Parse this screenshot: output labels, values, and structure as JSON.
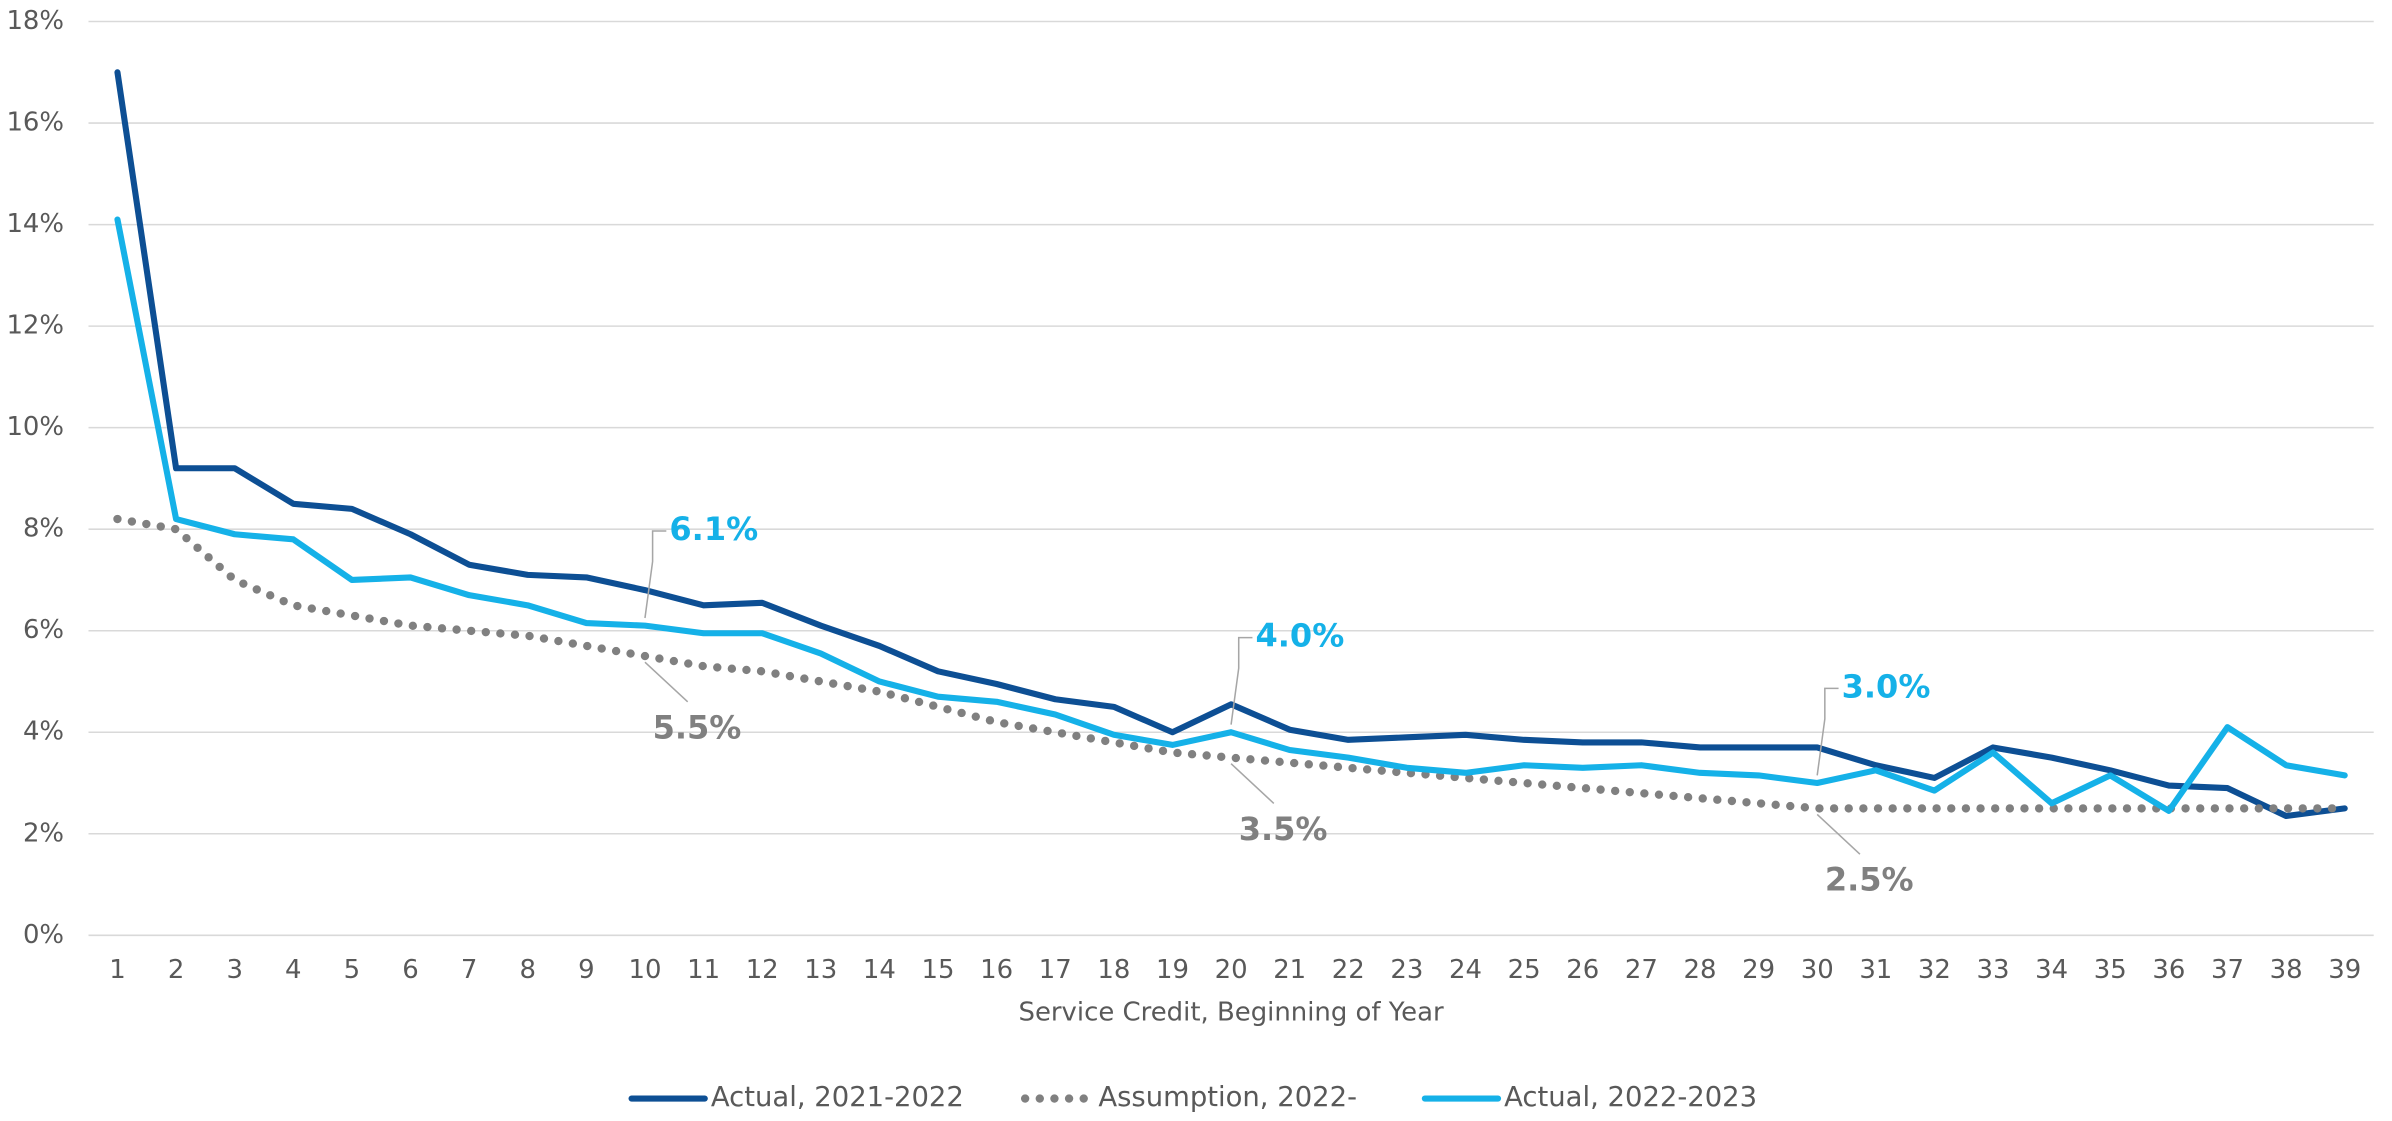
{
  "chart_data": {
    "type": "line",
    "x_label": "Service Credit, Beginning of Year",
    "categories": [
      1,
      2,
      3,
      4,
      5,
      6,
      7,
      8,
      9,
      10,
      11,
      12,
      13,
      14,
      15,
      16,
      17,
      18,
      19,
      20,
      21,
      22,
      23,
      24,
      25,
      26,
      27,
      28,
      29,
      30,
      31,
      32,
      33,
      34,
      35,
      36,
      37,
      38,
      39
    ],
    "ylim": [
      0,
      18
    ],
    "yticks": [
      {
        "value": 0,
        "label": "0%"
      },
      {
        "value": 2,
        "label": "2%"
      },
      {
        "value": 4,
        "label": "4%"
      },
      {
        "value": 6,
        "label": "6%"
      },
      {
        "value": 8,
        "label": "8%"
      },
      {
        "value": 10,
        "label": "10%"
      },
      {
        "value": 12,
        "label": "12%"
      },
      {
        "value": 14,
        "label": "14%"
      },
      {
        "value": 16,
        "label": "16%"
      },
      {
        "value": 18,
        "label": "18%"
      }
    ],
    "grid": true,
    "legend": "bottom",
    "series": [
      {
        "name": "Actual, 2021-2022",
        "color": "#0d4f94",
        "style": "solid",
        "values": [
          17.0,
          9.2,
          9.2,
          8.5,
          8.4,
          7.9,
          7.3,
          7.1,
          7.05,
          6.8,
          6.5,
          6.55,
          6.1,
          5.7,
          5.2,
          4.95,
          4.65,
          4.5,
          4.0,
          4.55,
          4.05,
          3.85,
          3.9,
          3.95,
          3.85,
          3.8,
          3.8,
          3.7,
          3.7,
          3.7,
          3.35,
          3.1,
          3.7,
          3.5,
          3.25,
          2.95,
          2.9,
          2.35,
          2.5
        ]
      },
      {
        "name": "Assumption, 2022-",
        "color": "#808080",
        "style": "dotted",
        "values": [
          8.2,
          8.0,
          7.0,
          6.5,
          6.3,
          6.1,
          6.0,
          5.9,
          5.7,
          5.5,
          5.3,
          5.2,
          5.0,
          4.8,
          4.5,
          4.2,
          4.0,
          3.8,
          3.6,
          3.5,
          3.4,
          3.3,
          3.2,
          3.1,
          3.0,
          2.9,
          2.8,
          2.7,
          2.6,
          2.5,
          2.5,
          2.5,
          2.5,
          2.5,
          2.5,
          2.5,
          2.5,
          2.5,
          2.5
        ],
        "value_labels": [
          null,
          null,
          null,
          null,
          null,
          null,
          null,
          null,
          null,
          "5.5%",
          null,
          null,
          null,
          null,
          null,
          null,
          null,
          null,
          null,
          "3.5%",
          null,
          null,
          null,
          null,
          null,
          null,
          null,
          null,
          null,
          "2.5%",
          null,
          null,
          null,
          null,
          null,
          null,
          null,
          null,
          null
        ]
      },
      {
        "name": "Actual, 2022-2023",
        "color": "#15b1e8",
        "style": "solid",
        "values": [
          14.1,
          8.2,
          7.9,
          7.8,
          7.0,
          7.05,
          6.7,
          6.5,
          6.15,
          6.1,
          5.95,
          5.95,
          5.55,
          5.0,
          4.7,
          4.6,
          4.35,
          3.95,
          3.75,
          4.0,
          3.65,
          3.5,
          3.3,
          3.2,
          3.35,
          3.3,
          3.35,
          3.2,
          3.15,
          3.0,
          3.25,
          2.85,
          3.6,
          2.6,
          3.15,
          2.45,
          4.1,
          3.35,
          3.15
        ],
        "value_labels": [
          null,
          null,
          null,
          null,
          null,
          null,
          null,
          null,
          null,
          "6.1%",
          null,
          null,
          null,
          null,
          null,
          null,
          null,
          null,
          null,
          "4.0%",
          null,
          null,
          null,
          null,
          null,
          null,
          null,
          null,
          null,
          "3.0%",
          null,
          null,
          null,
          null,
          null,
          null,
          null,
          null,
          null
        ]
      }
    ]
  }
}
